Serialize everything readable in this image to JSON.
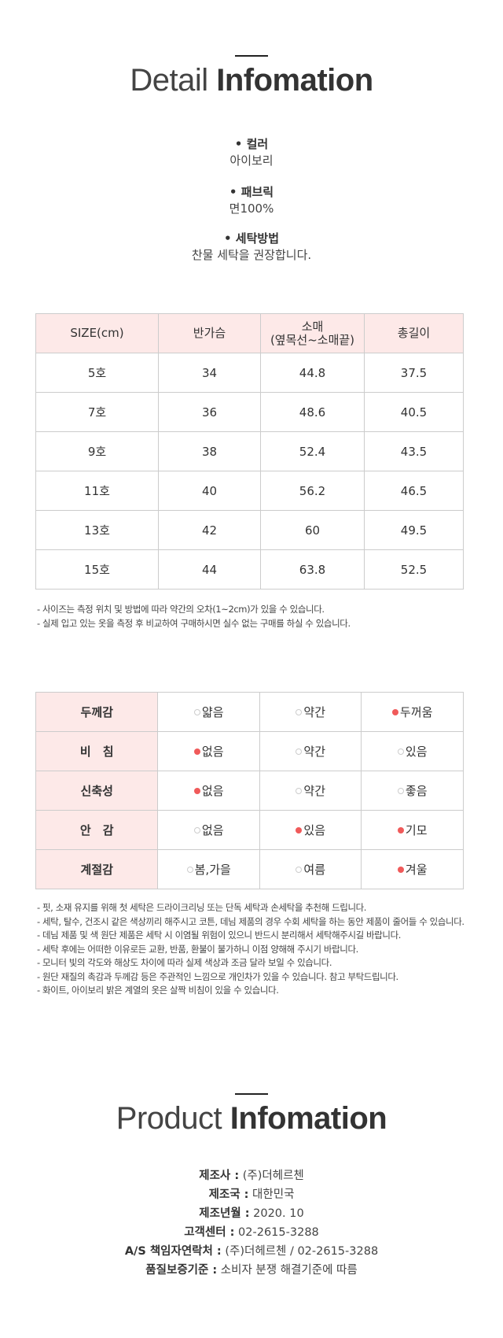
{
  "detail": {
    "title_light": "Detail",
    "title_bold": "Infomation",
    "specs": [
      {
        "label": "• 컬러",
        "value": "아이보리"
      },
      {
        "label": "• 패브릭",
        "value": "면100%"
      },
      {
        "label": "• 세탁방법",
        "value": "찬물 세탁을 권장합니다."
      }
    ]
  },
  "size_table": {
    "headers": [
      "SIZE(cm)",
      "반가슴",
      "소매",
      "(옆목선~소매끝)",
      "총길이"
    ],
    "rows": [
      [
        "5호",
        "34",
        "44.8",
        "37.5"
      ],
      [
        "7호",
        "36",
        "48.6",
        "40.5"
      ],
      [
        "9호",
        "38",
        "52.4",
        "43.5"
      ],
      [
        "11호",
        "40",
        "56.2",
        "46.5"
      ],
      [
        "13호",
        "42",
        "60",
        "49.5"
      ],
      [
        "15호",
        "44",
        "63.8",
        "52.5"
      ]
    ],
    "header_bg": "#fde9e8"
  },
  "size_notes": [
    "- 사이즈는 측정 위치 및 방법에 따라 약간의 오차(1~2cm)가 있을 수 있습니다.",
    "- 실제 입고 있는 옷을 측정 후 비교하여 구매하시면 실수 없는 구매를 하실 수 있습니다."
  ],
  "feel_table": {
    "accent": "#f05a5a",
    "rows": [
      {
        "label": "두께감",
        "options": [
          {
            "text": "얇음",
            "selected": false
          },
          {
            "text": "약간",
            "selected": false
          },
          {
            "text": "두꺼움",
            "selected": true
          }
        ]
      },
      {
        "label": "비　침",
        "options": [
          {
            "text": "없음",
            "selected": true
          },
          {
            "text": "약간",
            "selected": false
          },
          {
            "text": "있음",
            "selected": false
          }
        ]
      },
      {
        "label": "신축성",
        "options": [
          {
            "text": "없음",
            "selected": true
          },
          {
            "text": "약간",
            "selected": false
          },
          {
            "text": "좋음",
            "selected": false
          }
        ]
      },
      {
        "label": "안　감",
        "options": [
          {
            "text": "없음",
            "selected": false
          },
          {
            "text": "있음",
            "selected": true
          },
          {
            "text": "기모",
            "selected": true
          }
        ]
      },
      {
        "label": "계절감",
        "options": [
          {
            "text": "봄,가을",
            "selected": false
          },
          {
            "text": "여름",
            "selected": false
          },
          {
            "text": "겨울",
            "selected": true
          }
        ]
      }
    ]
  },
  "care_notes": [
    "- 핏, 소재 유지를 위해 첫 세탁은 드라이크리닝 또는 단독 세탁과 손세탁을 추천해 드립니다.",
    "- 세탁, 탈수, 건조시 같은 색상끼리 해주시고 코튼, 데님 제품의 경우 수회 세탁을 하는 동안 제품이 줄어들 수 있습니다.",
    "- 데님 제품 및 색 원단 제품은 세탁 시 이염될 위험이 있으니 반드시 분리해서 세탁해주시길 바랍니다.",
    "- 세탁 후에는 어떠한 이유로든 교환, 반품, 환불이 불가하니 이점 양해해 주시기 바랍니다.",
    "- 모니터 빛의 각도와 해상도 차이에 따라 실제 색상과 조금 달라 보일 수 있습니다.",
    "- 원단 재질의 촉감과 두께감 등은 주관적인 느낌으로 개인차가 있을 수 있습니다. 참고 부탁드립니다.",
    "- 화이트, 아이보리 밝은 계열의 옷은 살짝 비침이 있을 수 있습니다."
  ],
  "product": {
    "title_light": "Product",
    "title_bold": "Infomation",
    "items": [
      {
        "label": "제조사 :",
        "value": "(주)더헤르첸"
      },
      {
        "label": "제조국 :",
        "value": "대한민국"
      },
      {
        "label": "제조년월 :",
        "value": "2020. 10"
      },
      {
        "label": "고객센터 :",
        "value": "02-2615-3288"
      },
      {
        "label": "A/S 책임자연락처 :",
        "value": "(주)더헤르첸 / 02-2615-3288"
      },
      {
        "label": "품질보증기준 :",
        "value": "소비자 분쟁 해결기준에 따름"
      }
    ]
  }
}
